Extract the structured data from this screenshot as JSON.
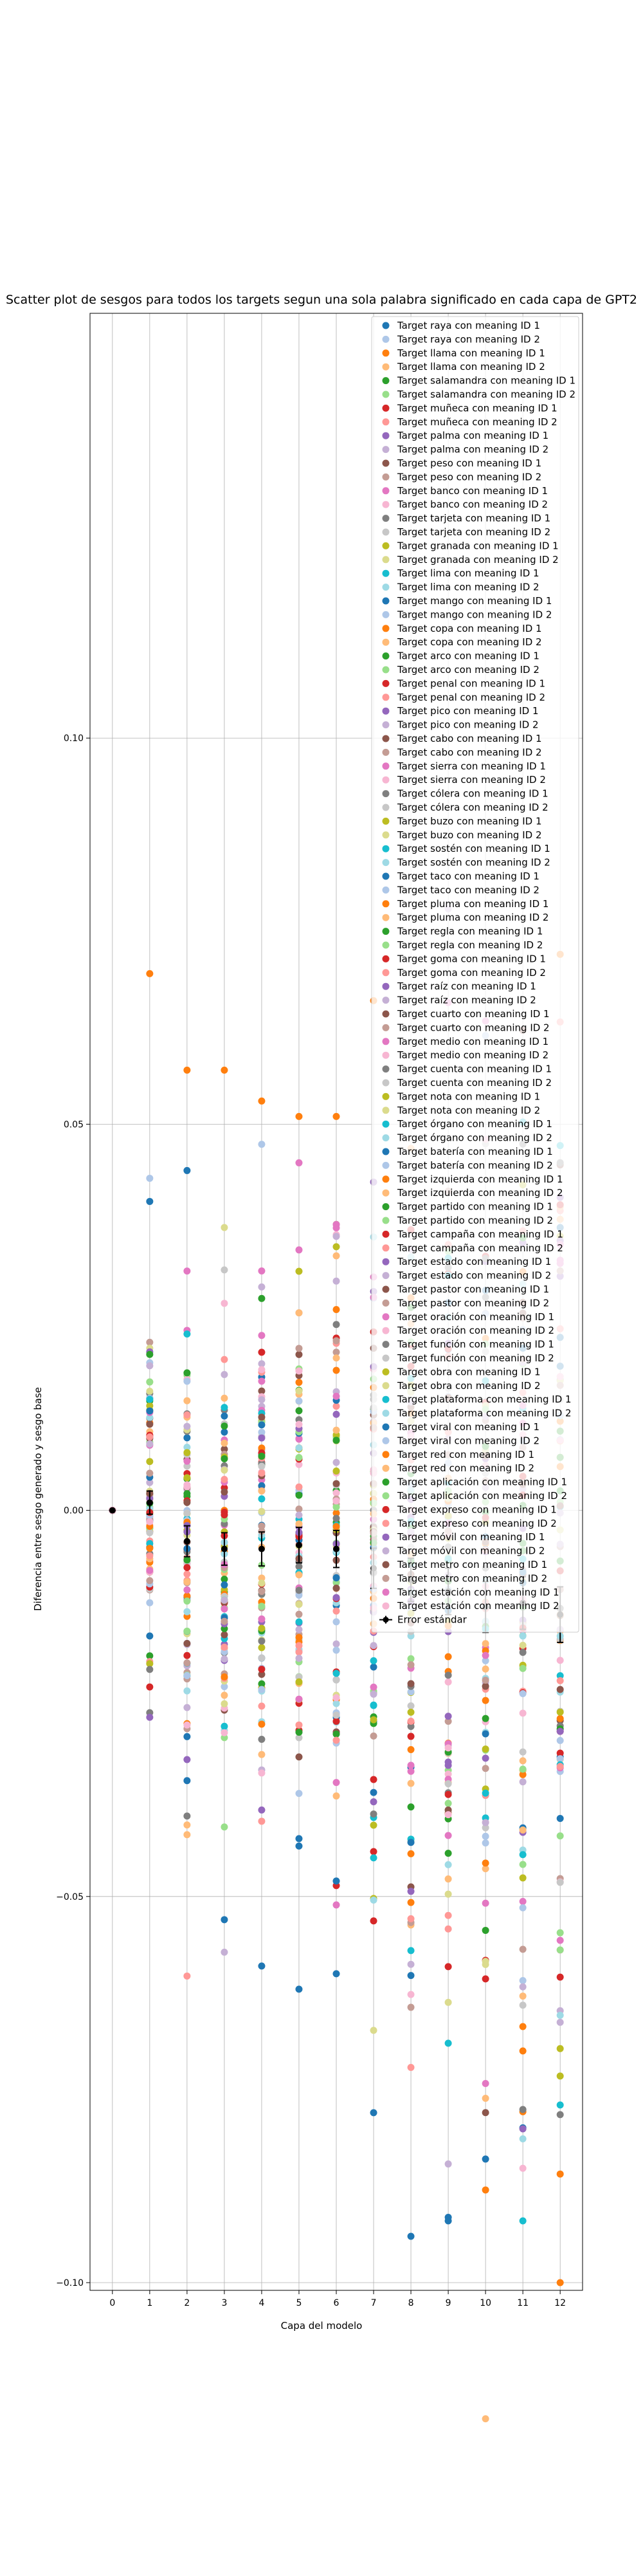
{
  "chart_data": {
    "type": "scatter",
    "title": "Scatter plot de sesgos para todos los targets segun una sola palabra significado en cada capa de GPT2",
    "xlabel": "Capa del modelo",
    "ylabel": "Diferencia entre sesgo generado y sesgo base",
    "xlim": [
      -0.6,
      12.6
    ],
    "ylim": [
      -0.101,
      0.155
    ],
    "x_ticks": [
      0,
      1,
      2,
      3,
      4,
      5,
      6,
      7,
      8,
      9,
      10,
      11,
      12
    ],
    "y_ticks": [
      -0.1,
      -0.05,
      0.0,
      0.05,
      0.1
    ],
    "y_tick_labels": [
      "−0.10",
      "−0.05",
      "0.00",
      "0.05",
      "0.10"
    ],
    "grid": true,
    "legend_position": "upper-right",
    "legend_entries": [
      "Target raya con meaning ID 1",
      "Target raya con meaning ID 2",
      "Target llama con meaning ID 1",
      "Target llama con meaning ID 2",
      "Target salamandra con meaning ID 1",
      "Target salamandra con meaning ID 2",
      "Target muñeca con meaning ID 1",
      "Target muñeca con meaning ID 2",
      "Target palma con meaning ID 1",
      "Target palma con meaning ID 2",
      "Target peso con meaning ID 1",
      "Target peso con meaning ID 2",
      "Target banco con meaning ID 1",
      "Target banco con meaning ID 2",
      "Target tarjeta con meaning ID 1",
      "Target tarjeta con meaning ID 2",
      "Target granada con meaning ID 1",
      "Target granada con meaning ID 2",
      "Target lima con meaning ID 1",
      "Target lima con meaning ID 2",
      "Target mango con meaning ID 1",
      "Target mango con meaning ID 2",
      "Target copa con meaning ID 1",
      "Target copa con meaning ID 2",
      "Target arco con meaning ID 1",
      "Target arco con meaning ID 2",
      "Target penal con meaning ID 1",
      "Target penal con meaning ID 2",
      "Target pico con meaning ID 1",
      "Target pico con meaning ID 2",
      "Target cabo con meaning ID 1",
      "Target cabo con meaning ID 2",
      "Target sierra con meaning ID 1",
      "Target sierra con meaning ID 2",
      "Target cólera con meaning ID 1",
      "Target cólera con meaning ID 2",
      "Target buzo con meaning ID 1",
      "Target buzo con meaning ID 2",
      "Target sostén con meaning ID 1",
      "Target sostén con meaning ID 2",
      "Target taco con meaning ID 1",
      "Target taco con meaning ID 2",
      "Target pluma con meaning ID 1",
      "Target pluma con meaning ID 2",
      "Target regla con meaning ID 1",
      "Target regla con meaning ID 2",
      "Target goma con meaning ID 1",
      "Target goma con meaning ID 2",
      "Target raíz con meaning ID 1",
      "Target raíz con meaning ID 2",
      "Target cuarto con meaning ID 1",
      "Target cuarto con meaning ID 2",
      "Target medio con meaning ID 1",
      "Target medio con meaning ID 2",
      "Target cuenta con meaning ID 1",
      "Target cuenta con meaning ID 2",
      "Target nota con meaning ID 1",
      "Target nota con meaning ID 2",
      "Target órgano con meaning ID 1",
      "Target órgano con meaning ID 2",
      "Target batería con meaning ID 1",
      "Target batería con meaning ID 2",
      "Target izquierda con meaning ID 1",
      "Target izquierda con meaning ID 2",
      "Target partido con meaning ID 1",
      "Target partido con meaning ID 2",
      "Target campaña con meaning ID 1",
      "Target campaña con meaning ID 2",
      "Target estado con meaning ID 1",
      "Target estado con meaning ID 2",
      "Target pastor con meaning ID 1",
      "Target pastor con meaning ID 2",
      "Target oración con meaning ID 1",
      "Target oración con meaning ID 2",
      "Target función con meaning ID 1",
      "Target función con meaning ID 2",
      "Target obra con meaning ID 1",
      "Target obra con meaning ID 2",
      "Target plataforma con meaning ID 1",
      "Target plataforma con meaning ID 2",
      "Target viral con meaning ID 1",
      "Target viral con meaning ID 2",
      "Target red con meaning ID 1",
      "Target red con meaning ID 2",
      "Target aplicación con meaning ID 1",
      "Target aplicación con meaning ID 2",
      "Target expreso con meaning ID 1",
      "Target expreso con meaning ID 2",
      "Target móvil con meaning ID 1",
      "Target móvil con meaning ID 2",
      "Target metro con meaning ID 1",
      "Target metro con meaning ID 2",
      "Target estación con meaning ID 1",
      "Target estación con meaning ID 2"
    ],
    "error_legend_label": "Error estándar",
    "palette": [
      "#1f77b4",
      "#aec7e8",
      "#ff7f0e",
      "#ffbb78",
      "#2ca02c",
      "#98df8a",
      "#d62728",
      "#ff9896",
      "#9467bd",
      "#c5b0d5",
      "#8c564b",
      "#c49c94",
      "#e377c2",
      "#f7b6d2",
      "#7f7f7f",
      "#c7c7c7",
      "#bcbd22",
      "#dbdb8d",
      "#17becf",
      "#9edae5"
    ],
    "error_color": "#000000",
    "layers": [
      0,
      1,
      2,
      3,
      4,
      5,
      6,
      7,
      8,
      9,
      10,
      11,
      12
    ],
    "mean_bias": [
      0.0,
      0.001,
      -0.004,
      -0.005,
      -0.005,
      -0.0045,
      -0.005,
      -0.0075,
      -0.009,
      -0.0105,
      -0.0125,
      -0.012,
      -0.0135
    ],
    "std_error": [
      0.0,
      0.0015,
      0.002,
      0.0021,
      0.0022,
      0.0023,
      0.0024,
      0.0026,
      0.0028,
      0.003,
      0.0033,
      0.0034,
      0.0036
    ],
    "spread_by_layer": [
      0.0,
      0.012,
      0.014,
      0.015,
      0.016,
      0.017,
      0.018,
      0.021,
      0.024,
      0.028,
      0.031,
      0.033,
      0.035
    ],
    "outliers": [
      {
        "x": 1,
        "y": 0.0695,
        "color": "#ff7f0e"
      },
      {
        "x": 1,
        "y": 0.043,
        "color": "#aec7e8"
      },
      {
        "x": 1,
        "y": 0.04,
        "color": "#1f77b4"
      },
      {
        "x": 2,
        "y": 0.057,
        "color": "#ff7f0e"
      },
      {
        "x": 2,
        "y": 0.044,
        "color": "#1f77b4"
      },
      {
        "x": 2,
        "y": -0.035,
        "color": "#1f77b4"
      },
      {
        "x": 2,
        "y": -0.042,
        "color": "#ffbb78"
      },
      {
        "x": 3,
        "y": 0.057,
        "color": "#ff7f0e"
      },
      {
        "x": 3,
        "y": -0.053,
        "color": "#1f77b4"
      },
      {
        "x": 3,
        "y": -0.041,
        "color": "#98df8a"
      },
      {
        "x": 4,
        "y": 0.053,
        "color": "#ff7f0e"
      },
      {
        "x": 4,
        "y": 0.031,
        "color": "#e377c2"
      },
      {
        "x": 4,
        "y": -0.059,
        "color": "#1f77b4"
      },
      {
        "x": 5,
        "y": 0.051,
        "color": "#ff7f0e"
      },
      {
        "x": 5,
        "y": 0.045,
        "color": "#e377c2"
      },
      {
        "x": 5,
        "y": -0.062,
        "color": "#1f77b4"
      },
      {
        "x": 6,
        "y": 0.051,
        "color": "#ff7f0e"
      },
      {
        "x": 6,
        "y": 0.037,
        "color": "#e377c2"
      },
      {
        "x": 6,
        "y": -0.06,
        "color": "#1f77b4"
      },
      {
        "x": 6,
        "y": -0.048,
        "color": "#1f77b4"
      },
      {
        "x": 7,
        "y": 0.066,
        "color": "#ff7f0e"
      },
      {
        "x": 7,
        "y": -0.078,
        "color": "#1f77b4"
      },
      {
        "x": 7,
        "y": -0.045,
        "color": "#17becf"
      },
      {
        "x": 8,
        "y": -0.094,
        "color": "#1f77b4"
      },
      {
        "x": 8,
        "y": -0.057,
        "color": "#17becf"
      },
      {
        "x": 9,
        "y": -0.092,
        "color": "#1f77b4"
      },
      {
        "x": 9,
        "y": -0.069,
        "color": "#17becf"
      },
      {
        "x": 10,
        "y": -0.088,
        "color": "#ff7f0e"
      },
      {
        "x": 10,
        "y": -0.084,
        "color": "#1f77b4"
      },
      {
        "x": 11,
        "y": -0.092,
        "color": "#17becf"
      },
      {
        "x": 11,
        "y": -0.07,
        "color": "#ff7f0e"
      },
      {
        "x": 12,
        "y": -0.1,
        "color": "#ff7f0e"
      },
      {
        "x": 12,
        "y": 0.072,
        "color": "#ff7f0e"
      },
      {
        "x": 12,
        "y": -0.077,
        "color": "#17becf"
      }
    ]
  }
}
